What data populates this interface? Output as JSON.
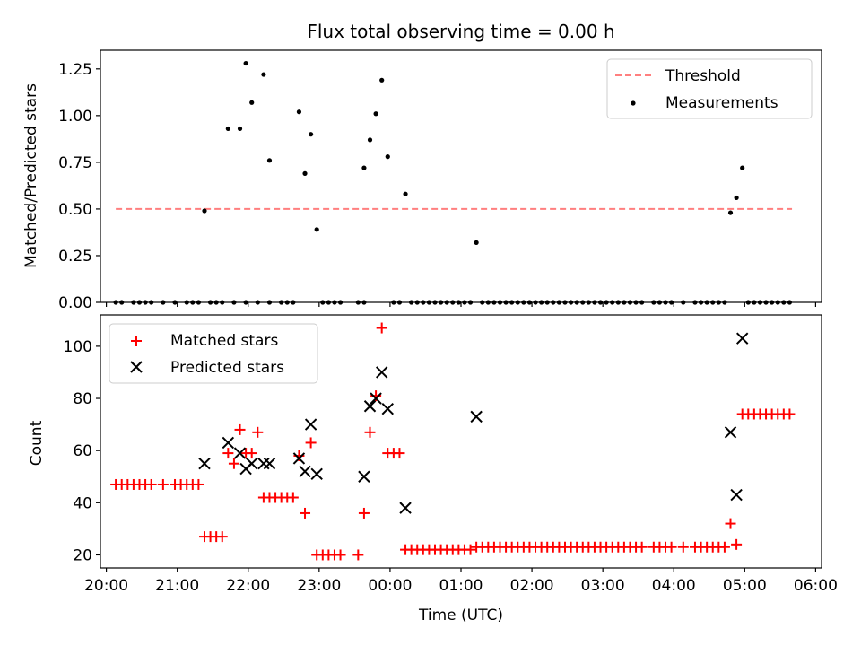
{
  "figure": {
    "title": "Flux total observing time = 0.00 h"
  },
  "chart_data": [
    {
      "type": "scatter",
      "panel": "top",
      "ylabel": "Matched/Predicted stars",
      "xlabel": "",
      "xlim": [
        "19:55",
        "06:05"
      ],
      "ylim": [
        0,
        1.35
      ],
      "yticks": [
        0.0,
        0.25,
        0.5,
        0.75,
        1.0,
        1.25
      ],
      "ytick_labels": [
        "0.00",
        "0.25",
        "0.50",
        "0.75",
        "1.00",
        "1.25"
      ],
      "legend": {
        "placement": "top-right",
        "entries": [
          "Threshold",
          "Measurements"
        ]
      },
      "threshold": {
        "name": "Threshold",
        "value": 0.5,
        "x": [
          "20:08",
          "05:40"
        ],
        "color": "#ff7f7f",
        "style": "dashed"
      },
      "measurements": {
        "name": "Measurements",
        "color": "#000000",
        "x": [
          "21:23",
          "21:43",
          "21:53",
          "21:58",
          "22:03",
          "22:13",
          "22:18",
          "22:43",
          "22:48",
          "22:53",
          "22:58",
          "23:38",
          "23:43",
          "23:48",
          "23:53",
          "23:58",
          "00:13",
          "01:13",
          "04:48",
          "04:53",
          "04:58"
        ],
        "y": [
          0.49,
          0.93,
          0.93,
          1.28,
          1.07,
          1.22,
          0.76,
          1.02,
          0.69,
          0.9,
          0.39,
          0.72,
          0.87,
          1.01,
          1.19,
          0.78,
          0.58,
          0.32,
          0.48,
          0.56,
          0.72
        ]
      },
      "zero_measurements": {
        "x": [
          "20:08",
          "20:13",
          "20:23",
          "20:28",
          "20:33",
          "20:38",
          "20:48",
          "20:58",
          "21:08",
          "21:13",
          "21:18",
          "21:28",
          "21:33",
          "21:38",
          "21:48",
          "21:58",
          "22:08",
          "22:18",
          "22:28",
          "22:33",
          "22:38",
          "23:03",
          "23:08",
          "23:13",
          "23:18",
          "23:33",
          "23:38",
          "00:03",
          "00:08",
          "00:18",
          "00:23",
          "00:28",
          "00:33",
          "00:38",
          "00:43",
          "00:48",
          "00:53",
          "00:58",
          "01:03",
          "01:08",
          "01:18",
          "01:23",
          "01:28",
          "01:33",
          "01:38",
          "01:43",
          "01:48",
          "01:53",
          "01:58",
          "02:03",
          "02:08",
          "02:13",
          "02:18",
          "02:23",
          "02:28",
          "02:33",
          "02:38",
          "02:43",
          "02:48",
          "02:53",
          "02:58",
          "03:03",
          "03:08",
          "03:13",
          "03:18",
          "03:23",
          "03:28",
          "03:33",
          "03:43",
          "03:48",
          "03:53",
          "03:58",
          "04:08",
          "04:18",
          "04:23",
          "04:28",
          "04:33",
          "04:38",
          "04:43",
          "05:03",
          "05:08",
          "05:13",
          "05:18",
          "05:23",
          "05:28",
          "05:33",
          "05:38"
        ],
        "y_value": 0
      }
    },
    {
      "type": "scatter",
      "panel": "bottom",
      "xlabel": "Time (UTC)",
      "ylabel": "Count",
      "xlim": [
        "19:55",
        "06:05"
      ],
      "ylim": [
        15,
        112
      ],
      "yticks": [
        20,
        40,
        60,
        80,
        100
      ],
      "ytick_labels": [
        "20",
        "40",
        "60",
        "80",
        "100"
      ],
      "xticks": [
        "20:00",
        "21:00",
        "22:00",
        "23:00",
        "00:00",
        "01:00",
        "02:00",
        "03:00",
        "04:00",
        "05:00",
        "06:00"
      ],
      "xtick_labels": [
        "20:00",
        "21:00",
        "22:00",
        "23:00",
        "00:00",
        "01:00",
        "02:00",
        "03:00",
        "04:00",
        "05:00",
        "06:00"
      ],
      "legend": {
        "placement": "top-left",
        "entries": [
          "Matched stars",
          "Predicted stars"
        ]
      },
      "series": [
        {
          "name": "Matched stars",
          "marker": "plus",
          "color": "#ff0000",
          "x": [
            "20:08",
            "20:13",
            "20:18",
            "20:23",
            "20:28",
            "20:33",
            "20:38",
            "20:48",
            "20:58",
            "21:03",
            "21:08",
            "21:13",
            "21:18",
            "21:23",
            "21:28",
            "21:33",
            "21:38",
            "21:43",
            "21:48",
            "21:53",
            "21:58",
            "22:03",
            "22:08",
            "22:13",
            "22:18",
            "22:23",
            "22:28",
            "22:33",
            "22:38",
            "22:43",
            "22:48",
            "22:53",
            "22:58",
            "23:03",
            "23:08",
            "23:13",
            "23:18",
            "23:33",
            "23:38",
            "23:43",
            "23:48",
            "23:53",
            "23:58",
            "00:03",
            "00:08",
            "00:13",
            "00:18",
            "00:23",
            "00:28",
            "00:33",
            "00:38",
            "00:43",
            "00:48",
            "00:53",
            "00:58",
            "01:03",
            "01:08",
            "01:13",
            "01:18",
            "01:23",
            "01:28",
            "01:33",
            "01:38",
            "01:43",
            "01:48",
            "01:53",
            "01:58",
            "02:03",
            "02:08",
            "02:13",
            "02:18",
            "02:23",
            "02:28",
            "02:33",
            "02:38",
            "02:43",
            "02:48",
            "02:53",
            "02:58",
            "03:03",
            "03:08",
            "03:13",
            "03:18",
            "03:23",
            "03:28",
            "03:33",
            "03:43",
            "03:48",
            "03:53",
            "03:58",
            "04:08",
            "04:18",
            "04:23",
            "04:28",
            "04:33",
            "04:38",
            "04:43",
            "04:48",
            "04:53",
            "04:58",
            "05:03",
            "05:08",
            "05:13",
            "05:18",
            "05:23",
            "05:28",
            "05:33",
            "05:38"
          ],
          "y": [
            47,
            47,
            47,
            47,
            47,
            47,
            47,
            47,
            47,
            47,
            47,
            47,
            47,
            27,
            27,
            27,
            27,
            59,
            55,
            68,
            59,
            59,
            67,
            42,
            42,
            42,
            42,
            42,
            42,
            58,
            36,
            63,
            20,
            20,
            20,
            20,
            20,
            20,
            36,
            67,
            81,
            107,
            59,
            59,
            59,
            22,
            22,
            22,
            22,
            22,
            22,
            22,
            22,
            22,
            22,
            22,
            22,
            23,
            23,
            23,
            23,
            23,
            23,
            23,
            23,
            23,
            23,
            23,
            23,
            23,
            23,
            23,
            23,
            23,
            23,
            23,
            23,
            23,
            23,
            23,
            23,
            23,
            23,
            23,
            23,
            23,
            23,
            23,
            23,
            23,
            23,
            23,
            23,
            23,
            23,
            23,
            23,
            32,
            24,
            74,
            74,
            74,
            74,
            74,
            74,
            74,
            74,
            74
          ]
        },
        {
          "name": "Predicted stars",
          "marker": "x",
          "color": "#000000",
          "x": [
            "21:23",
            "21:43",
            "21:53",
            "21:58",
            "22:03",
            "22:13",
            "22:18",
            "22:43",
            "22:48",
            "22:53",
            "22:58",
            "23:38",
            "23:43",
            "23:48",
            "23:53",
            "23:58",
            "00:13",
            "01:13",
            "04:48",
            "04:53",
            "04:58"
          ],
          "y": [
            55,
            63,
            59,
            53,
            55,
            55,
            55,
            57,
            52,
            70,
            51,
            50,
            77,
            80,
            90,
            76,
            38,
            73,
            67,
            43,
            103
          ]
        }
      ]
    }
  ]
}
